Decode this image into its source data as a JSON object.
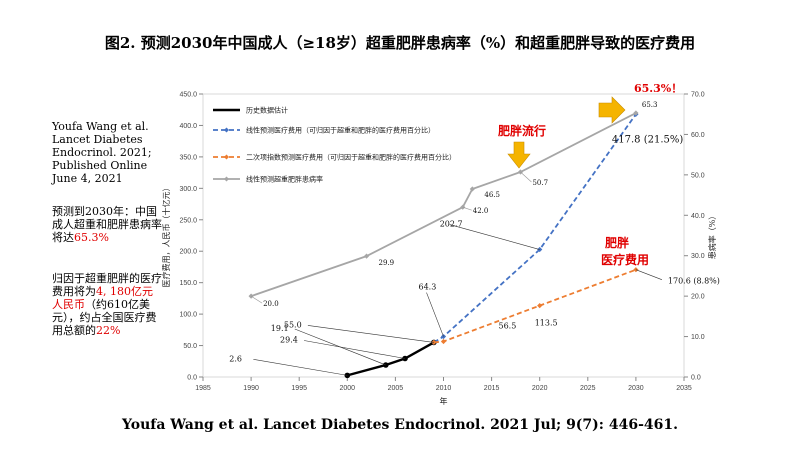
{
  "page": {
    "title": "图2. 预测2030年中国成人（≥18岁）超重肥胖患病率（%）和超重肥胖导致的医疗费用",
    "reference": "Youfa Wang et al. Lancet Diabetes Endocrinol. 2021; Published Online June 4, 2021",
    "note1": {
      "before": "预测到2030年：中国成人超重和肥胖患病率将达",
      "highlight": "65.3%"
    },
    "note2": {
      "before": "归因于超重肥胖的医疗费用将为",
      "highlight": "4, 180亿元人民币",
      "middle": "（约610亿美元），约占全国医疗费用总额的",
      "highlight2": "22%"
    },
    "citation": "Youfa Wang et al. Lancet Diabetes Endocrinol. 2021 Jul; 9(7): 446-461."
  },
  "chart_data": {
    "type": "line",
    "xlabel": "年",
    "ylabel_left": "医疗费用，人民币（十亿元）",
    "ylabel_right": "患病率（%）",
    "xlim": [
      1985,
      2035
    ],
    "ylim_left": [
      0,
      450
    ],
    "ylim_right": [
      0,
      70
    ],
    "x_ticks": [
      "1985",
      "1990",
      "1995",
      "2000",
      "2005",
      "2010",
      "2015",
      "2020",
      "2025",
      "2030",
      "2035"
    ],
    "y_left_ticks": [
      "0.0",
      "50.0",
      "100.0",
      "150.0",
      "200.0",
      "250.0",
      "300.0",
      "350.0",
      "400.0",
      "450.0"
    ],
    "y_right_ticks": [
      "0.0",
      "10.0",
      "20.0",
      "30.0",
      "40.0",
      "50.0",
      "60.0",
      "70.0"
    ],
    "legend": [
      "历史数据估计",
      "线性预测医疗费用（可归因于超重和肥胖的医疗费用百分比）",
      "二次项指数预测医疗费用（可归因于超重和肥胖的医疗费用百分比）",
      "线性预测超重肥胖患病率"
    ],
    "legend_position": "top-left",
    "colors": {
      "history": "#000000",
      "linear_cost": "#4472c4",
      "quad_cost": "#ed7d31",
      "prevalence": "#a6a6a6",
      "annotation_red": "#e00000",
      "arrow": "#f5b400"
    },
    "series": [
      {
        "name": "历史数据估计",
        "axis": "left",
        "x": [
          2000,
          2004,
          2006,
          2009
        ],
        "y": [
          2.6,
          19.1,
          29.4,
          55.0
        ],
        "labels": [
          "2.6",
          "19.1",
          "29.4",
          "55.0"
        ]
      },
      {
        "name": "线性预测医疗费用（可归因于超重和肥胖的医疗费用百分比）",
        "axis": "left",
        "x": [
          2009,
          2010,
          2020,
          2030
        ],
        "y": [
          55.0,
          64.3,
          202.7,
          417.8
        ],
        "labels": [
          "",
          "64.3",
          "202.7",
          "417.8 (21.5%)"
        ]
      },
      {
        "name": "二次项指数预测医疗费用（可归因于超重和肥胖的医疗费用百分比）",
        "axis": "left",
        "x": [
          2009,
          2010,
          2020,
          2030
        ],
        "y": [
          55.0,
          56.5,
          113.5,
          170.6
        ],
        "labels": [
          "",
          "56.5",
          "113.5",
          "170.6 (8.8%)"
        ]
      },
      {
        "name": "线性预测超重肥胖患病率",
        "axis": "right",
        "x": [
          1990,
          2002,
          2012,
          2013,
          2018,
          2030
        ],
        "y": [
          20.0,
          29.9,
          42.0,
          46.5,
          50.7,
          65.3
        ],
        "labels": [
          "20.0",
          "29.9",
          "42.0",
          "46.5",
          "50.7",
          "65.3"
        ]
      }
    ],
    "annotations": {
      "peak": "65.3%！",
      "epidemic": "肥胖流行",
      "cost": "肥胖医疗费用"
    }
  }
}
